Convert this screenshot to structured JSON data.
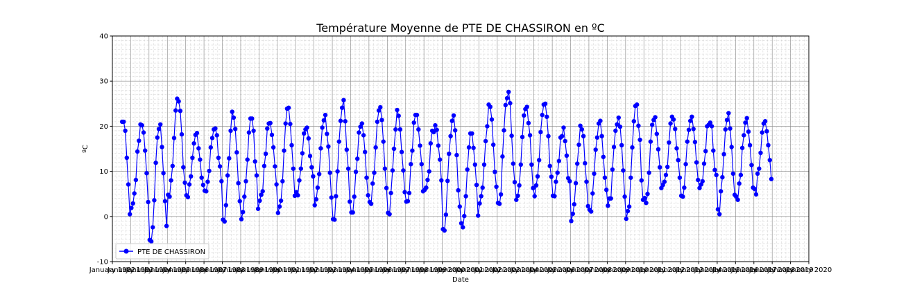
{
  "chart_data": {
    "type": "line",
    "title": "Température Moyenne de PTE DE CHASSIRON en ºC",
    "xlabel": "Date",
    "ylabel": "ºC",
    "ylim": [
      -10,
      40
    ],
    "xlim": [
      "1982-01-01",
      "2020-01-01"
    ],
    "y_ticks": [
      "-10",
      "0",
      "10",
      "20",
      "30",
      "40"
    ],
    "x_tick_labels": [
      "January 1982",
      "January 1983",
      "January 1984",
      "January 1985",
      "January 1986",
      "January 1987",
      "January 1988",
      "January 1989",
      "January 1990",
      "January 1991",
      "January 1992",
      "January 1993",
      "January 1994",
      "January 1995",
      "January 1996",
      "January 1997",
      "January 1998",
      "January 1999",
      "January 2000",
      "January 2001",
      "January 2002",
      "January 2003",
      "January 2004",
      "January 2005",
      "January 2006",
      "January 2007",
      "January 2008",
      "January 2009",
      "January 2010",
      "January 2011",
      "January 2012",
      "January 2013",
      "January 2014",
      "January 2015",
      "January 2016",
      "January 2017",
      "January 2018",
      "January 2019",
      "January 2020"
    ],
    "grid": true,
    "legend_position": "bottom-left",
    "series": [
      {
        "name": "PTE DE CHASSIRON",
        "color": "#0000ff",
        "x_start": "1982-07",
        "x_end": "2017-12",
        "y_mean": 12.8,
        "y_amplitude": 6.4,
        "peaks": [
          20.9,
          20.5,
          20.1,
          25.5,
          18.6,
          19.4,
          22.4,
          21.6,
          21.2,
          23.9,
          20.0,
          22.7,
          25.4,
          20.8,
          24.0,
          22.8,
          22.2,
          20.4,
          22.1,
          18.8,
          24.2,
          27.4,
          24.8,
          24.5,
          19.2,
          19.8,
          21.6,
          22.2,
          25.2,
          22.2,
          21.6,
          21.8,
          21.2,
          22.7,
          21.3,
          21.2
        ],
        "troughs": [
          -1.9,
          1.6,
          -5.5,
          4.1,
          4.4,
          6.0,
          -0.9,
          -0.3,
          3.6,
          0.7,
          5.3,
          2.5,
          0.0,
          1.3,
          3.5,
          0.7,
          3.4,
          5.8,
          -2.4,
          -1.9,
          3.3,
          2.6,
          3.7,
          5.1,
          4.3,
          -1.2,
          2.0,
          2.4,
          -0.1,
          3.6,
          7.0,
          4.1,
          6.2,
          1.0,
          4.0,
          6.0
        ]
      }
    ]
  }
}
